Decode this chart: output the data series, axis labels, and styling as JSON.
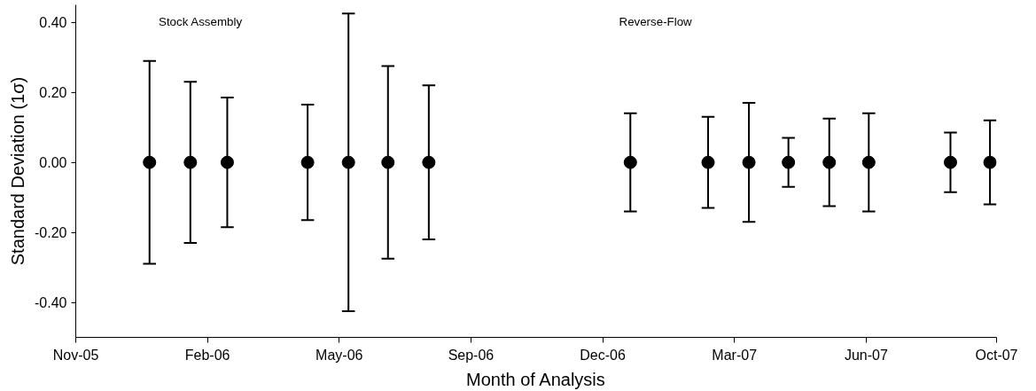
{
  "chart_data": {
    "type": "scatter",
    "xlabel": "Month of Analysis",
    "ylabel": "Standard Deviation (1σ)",
    "x": [
      "2006-01",
      "2006-02",
      "2006-03",
      "2006-05",
      "2006-06",
      "2006-07",
      "2006-08",
      "2007-01",
      "2007-03",
      "2007-04",
      "2007-05",
      "2007-06",
      "2007-07",
      "2007-09",
      "2007-10"
    ],
    "series": [
      {
        "color": "#000000",
        "values": [
          0,
          0,
          0,
          0,
          0,
          0,
          0,
          0,
          0,
          0,
          0,
          0,
          0,
          0,
          0
        ],
        "errors": [
          0.29,
          0.23,
          0.185,
          0.165,
          0.425,
          0.275,
          0.22,
          0.14,
          0.13,
          0.17,
          0.07,
          0.125,
          0.14,
          0.085,
          0.12
        ]
      }
    ],
    "marker": "circle",
    "grid": false,
    "xlim": [
      "2005-11-06",
      "2007-10-06"
    ],
    "xticks": [
      {
        "value": "2005-11-06",
        "label": "Nov-05"
      },
      {
        "value": "2006-02-14",
        "label": "Feb-06"
      },
      {
        "value": "2006-05-25",
        "label": "May-06"
      },
      {
        "value": "2006-09-02",
        "label": "Sep-06"
      },
      {
        "value": "2006-12-11",
        "label": "Dec-06"
      },
      {
        "value": "2007-03-21",
        "label": "Mar-07"
      },
      {
        "value": "2007-06-29",
        "label": "Jun-07"
      },
      {
        "value": "2007-10-06",
        "label": "Oct-07"
      }
    ],
    "ylim": [
      -0.5,
      0.45
    ],
    "yticks": [
      {
        "value": -0.4,
        "label": "-0.40"
      },
      {
        "value": -0.2,
        "label": "-0.20"
      },
      {
        "value": 0,
        "label": "0.00"
      },
      {
        "value": 0.2,
        "label": "0.20"
      },
      {
        "value": 0.4,
        "label": "0.40"
      }
    ],
    "annotations": [
      "Stock Assembly",
      "Reverse-Flow"
    ]
  }
}
